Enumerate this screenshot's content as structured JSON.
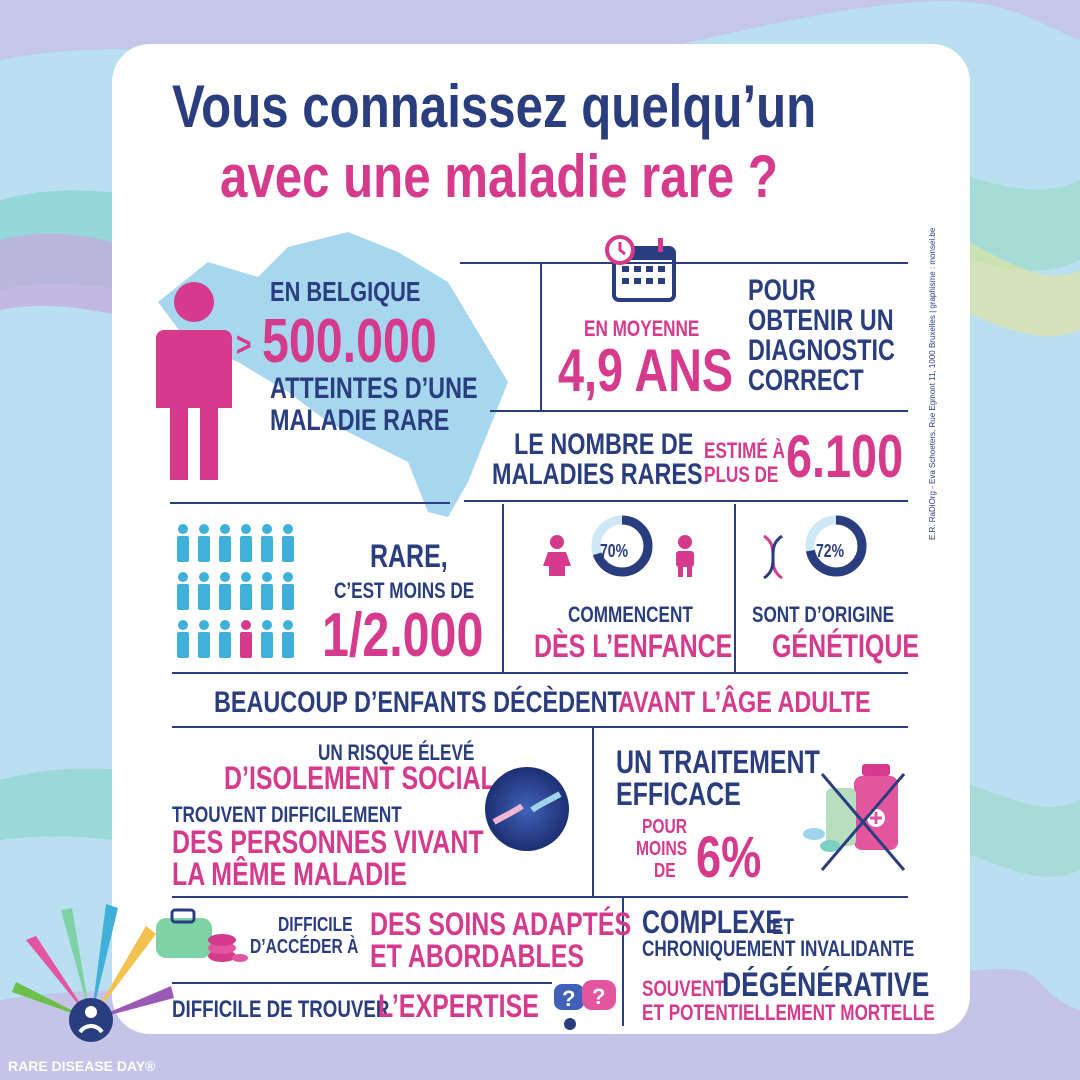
{
  "title": {
    "line1": "Vous connaissez quelqu’un",
    "line2": "avec une maladie rare ?"
  },
  "belgium": {
    "label": "EN BELGIQUE",
    "gt": ">",
    "count": "500.000",
    "desc1": "ATTEINTES D’UNE",
    "desc2": "MALADIE RARE"
  },
  "diagnosis": {
    "avg": "EN MOYENNE",
    "years": "4,9 ANS",
    "l1": "POUR",
    "l2": "OBTENIR UN",
    "l3": "DIAGNOSTIC",
    "l4": "CORRECT"
  },
  "number": {
    "l1": "LE NOMBRE DE",
    "l2": "MALADIES RARES",
    "e1": "ESTIMÉ À",
    "e2": "PLUS DE",
    "value": "6.100"
  },
  "rare": {
    "l1": "RARE,",
    "l2": "C’EST MOINS DE",
    "value": "1/2.000"
  },
  "childhood": {
    "pct": "70%",
    "percent": 70,
    "l1": "COMMENCENT",
    "l2": "DÈS L’ENFANCE"
  },
  "genetic": {
    "pct": "72%",
    "percent": 72,
    "l1": "SONT D’ORIGINE",
    "l2": "GÉNÉTIQUE"
  },
  "deaths": {
    "navy": "BEAUCOUP D’ENFANTS DÉCÈDENT",
    "pink": "AVANT L’ÂGE ADULTE"
  },
  "isolation": {
    "l1": "UN RISQUE ÉLEVÉ",
    "l2": "D’ISOLEMENT SOCIAL",
    "l3": "TROUVENT DIFFICILEMENT",
    "l4": "DES PERSONNES VIVANT",
    "l5": "LA MÊME MALADIE"
  },
  "treatment": {
    "l1": "UN TRAITEMENT",
    "l2": "EFFICACE",
    "p1": "POUR",
    "p2": "MOINS",
    "p3": "DE",
    "value": "6%"
  },
  "care": {
    "l1": "DIFFICILE",
    "l2": "D’ACCÉDER À",
    "p1": "DES SOINS ADAPTÉS",
    "p2": "ET ABORDABLES"
  },
  "expertise": {
    "navy": "DIFFICILE DE TROUVER",
    "pink": "L’EXPERTISE"
  },
  "complex": {
    "a": "COMPLEXE",
    "b": "ET",
    "c": "CHRONIQUEMENT INVALIDANTE",
    "d": "SOUVENT",
    "e": "DÉGÉNÉRATIVE",
    "f": "ET POTENTIELLEMENT MORTELLE"
  },
  "credit": "E.R.  RaDiOrg - Eva Schoeters, Rue Egmont 11, 1000 Bruxelles  |  graphisme : monsel.be",
  "logo": "RARE DISEASE DAY®",
  "colors": {
    "navy": "#2a3d7e",
    "pink": "#d63a8c",
    "light_blue": "#9fd3ee",
    "cyan": "#3fb0d8"
  }
}
